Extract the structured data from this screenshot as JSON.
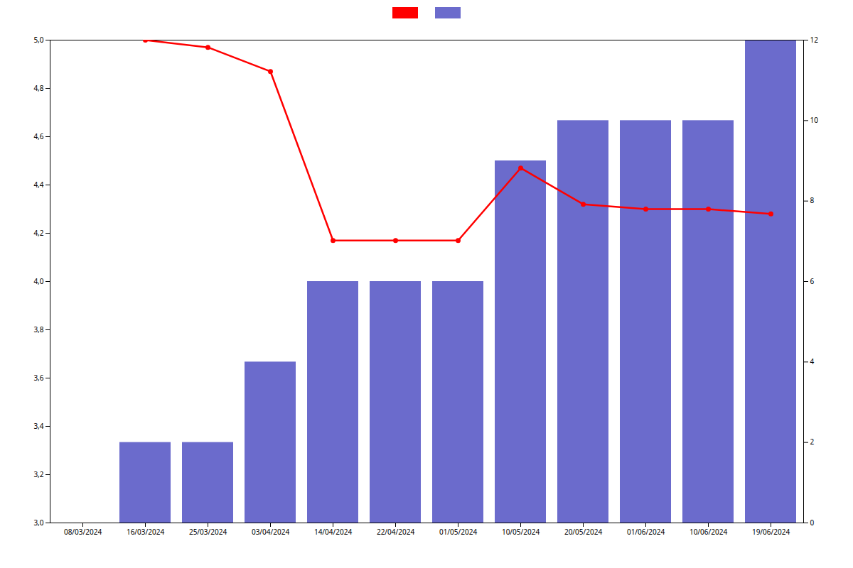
{
  "chart_data": {
    "type": "bar",
    "categories": [
      "08/03/2024",
      "16/03/2024",
      "25/03/2024",
      "03/04/2024",
      "14/04/2024",
      "22/04/2024",
      "01/05/2024",
      "10/05/2024",
      "20/05/2024",
      "01/06/2024",
      "10/06/2024",
      "19/06/2024"
    ],
    "series": [
      {
        "type": "line",
        "color": "#FF0000",
        "marker": "circle",
        "values": [
          null,
          5.0,
          4.97,
          4.87,
          4.17,
          4.17,
          4.17,
          4.47,
          4.32,
          4.3,
          4.3,
          4.28
        ]
      },
      {
        "type": "bar",
        "color": "#6B6BCC",
        "axis": "y2",
        "values": [
          0,
          2,
          2,
          4,
          6,
          6,
          6,
          9,
          10,
          10,
          10,
          12
        ]
      }
    ],
    "ylim": [
      3.0,
      5.0
    ],
    "yticks": [
      {
        "value": 3.0,
        "label": "3,0"
      },
      {
        "value": 3.2,
        "label": "3,2"
      },
      {
        "value": 3.4,
        "label": "3,4"
      },
      {
        "value": 3.6,
        "label": "3,6"
      },
      {
        "value": 3.8,
        "label": "3,8"
      },
      {
        "value": 4.0,
        "label": "4,0"
      },
      {
        "value": 4.2,
        "label": "4,2"
      },
      {
        "value": 4.4,
        "label": "4,4"
      },
      {
        "value": 4.6,
        "label": "4,6"
      },
      {
        "value": 4.8,
        "label": "4,8"
      },
      {
        "value": 5.0,
        "label": "5,0"
      }
    ],
    "y2lim": [
      0,
      12
    ],
    "y2ticks": [
      0,
      2,
      4,
      6,
      8,
      10,
      12
    ],
    "grid": false,
    "legend": "top"
  }
}
